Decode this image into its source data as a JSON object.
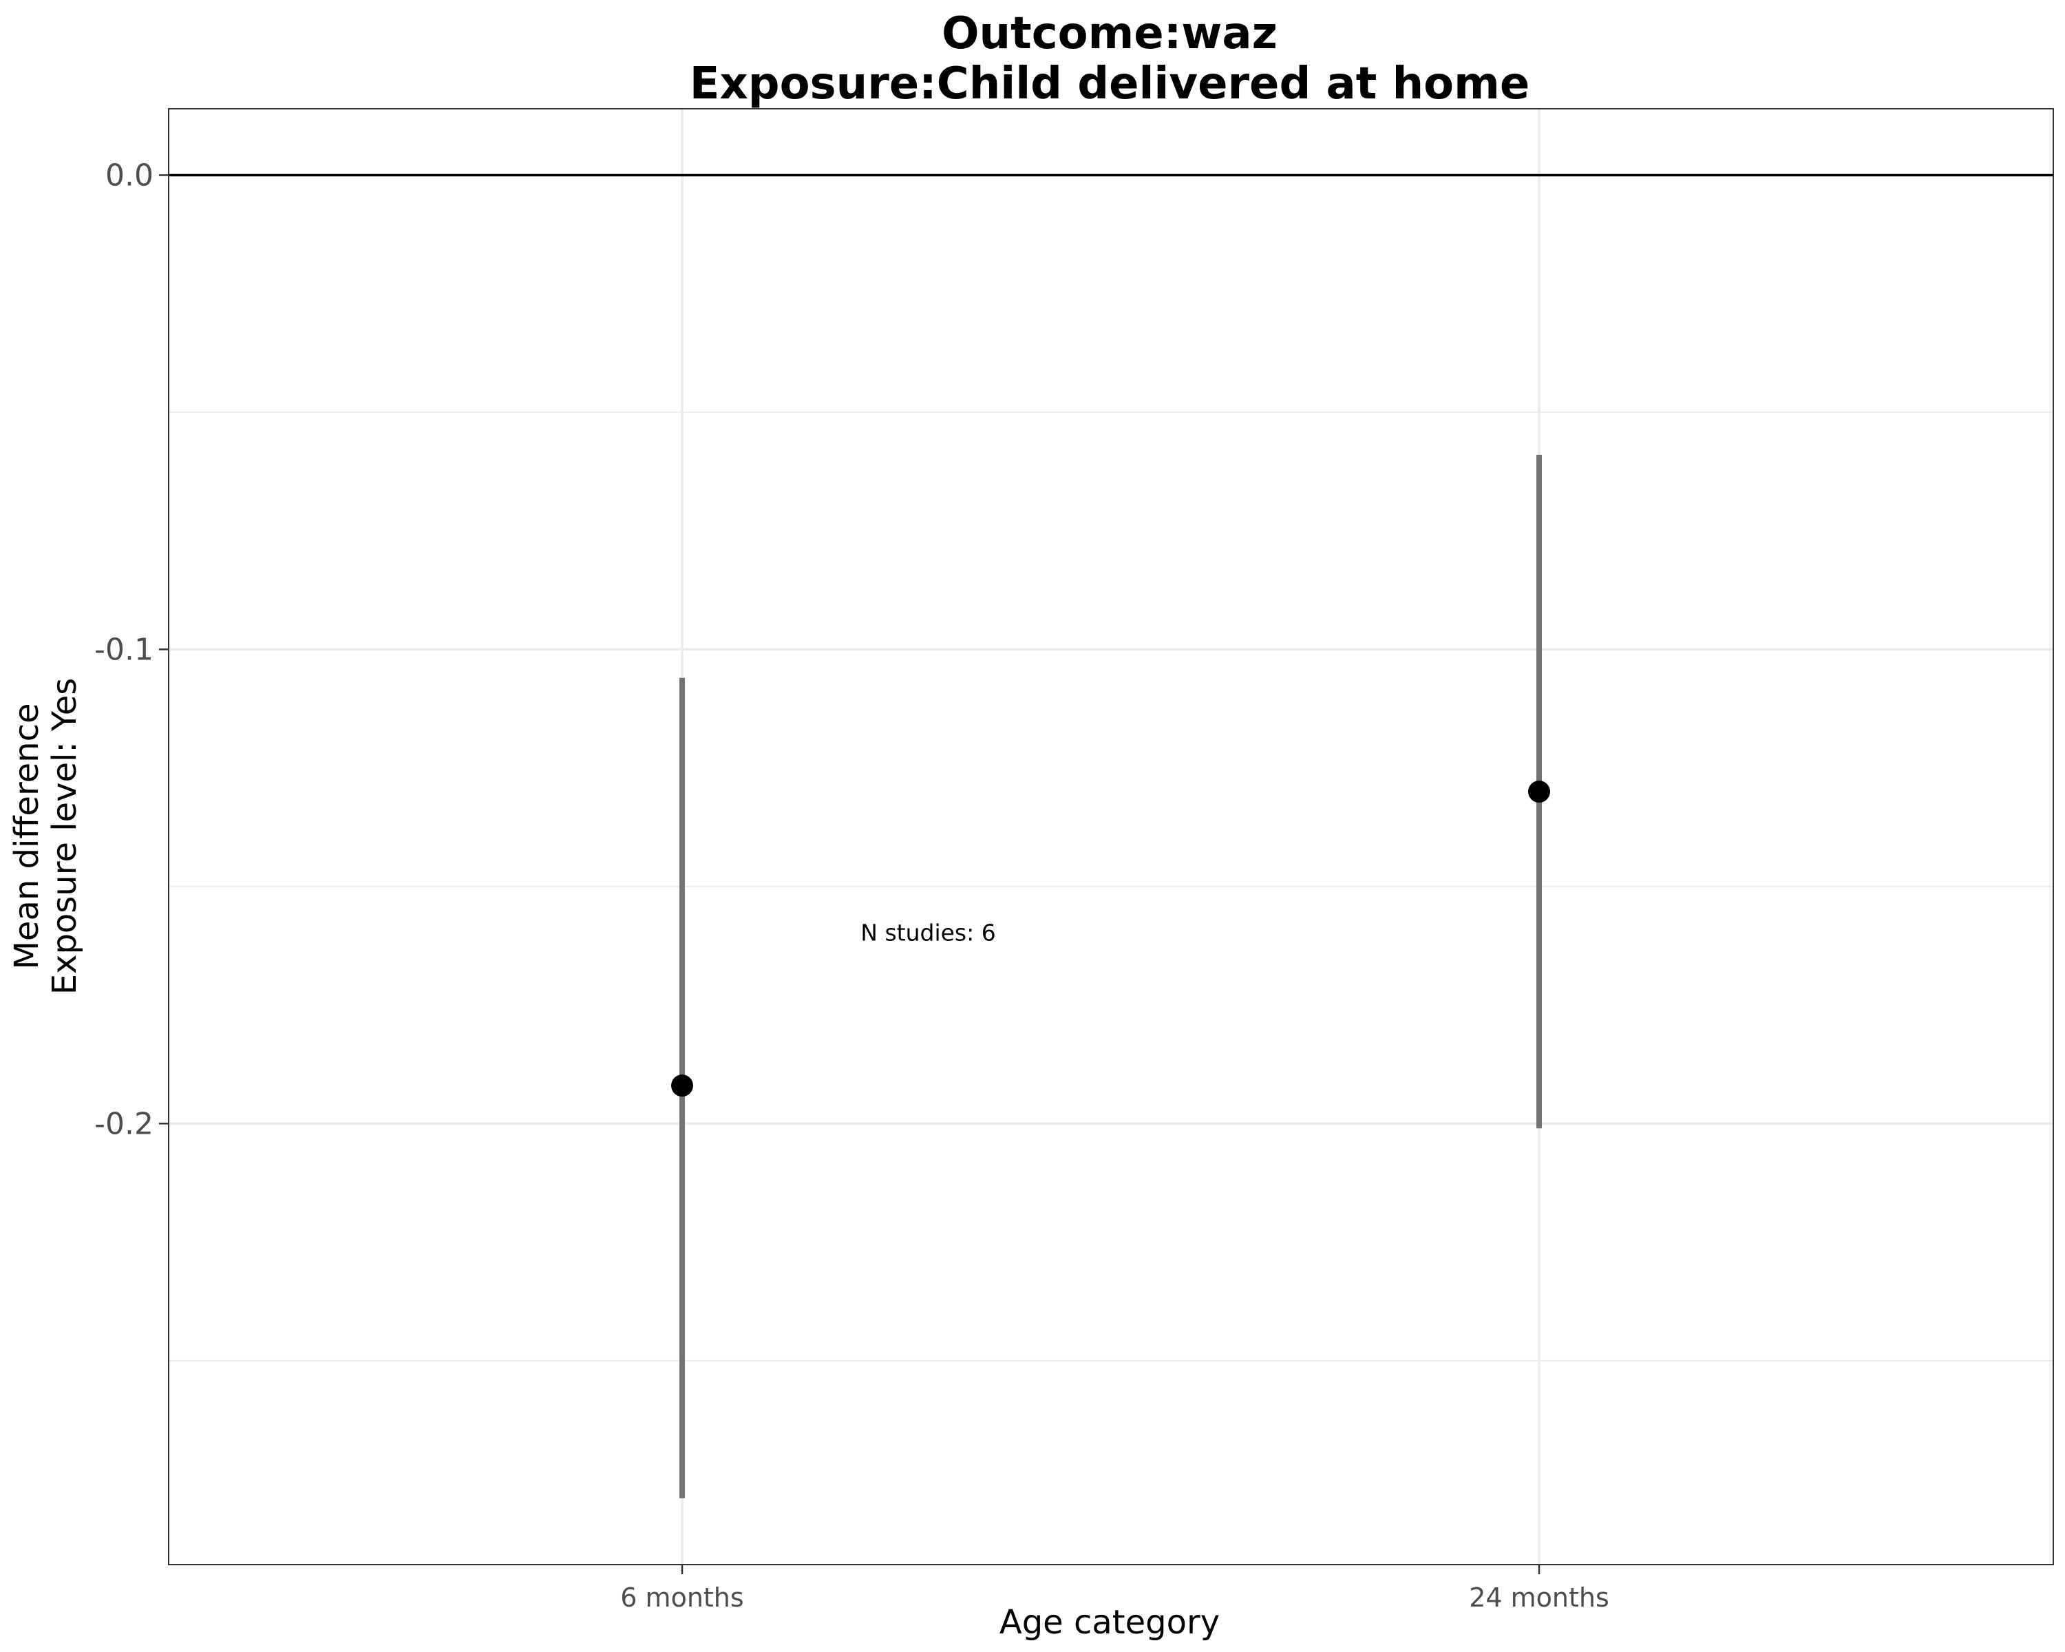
{
  "chart_data": {
    "type": "scatter",
    "title_line1": "Outcome:waz",
    "title_line2": "Exposure:Child delivered at home",
    "xlabel": "Age category",
    "ylabel_line1": "Mean difference",
    "ylabel_line2": "Exposure level: Yes",
    "categories": [
      "6 months",
      "24 months"
    ],
    "points": [
      {
        "category": "6 months",
        "estimate": -0.192,
        "ci_lower": -0.279,
        "ci_upper": -0.106
      },
      {
        "category": "24 months",
        "estimate": -0.13,
        "ci_lower": -0.201,
        "ci_upper": -0.059
      }
    ],
    "yticks": [
      0.0,
      -0.1,
      -0.2
    ],
    "ytick_labels": [
      "0.0",
      "-0.1",
      "-0.2"
    ],
    "ylim": [
      -0.293,
      0.014
    ],
    "reference_line": 0.0,
    "annotation": "N studies: 6",
    "annotation_position": {
      "category_index": 0.5,
      "y": -0.16
    },
    "grid": true,
    "colors": {
      "point": "#000000",
      "errorbar": "#737373",
      "reference_line": "#000000",
      "grid": "#ebebeb",
      "panel_border": "#333333"
    }
  }
}
